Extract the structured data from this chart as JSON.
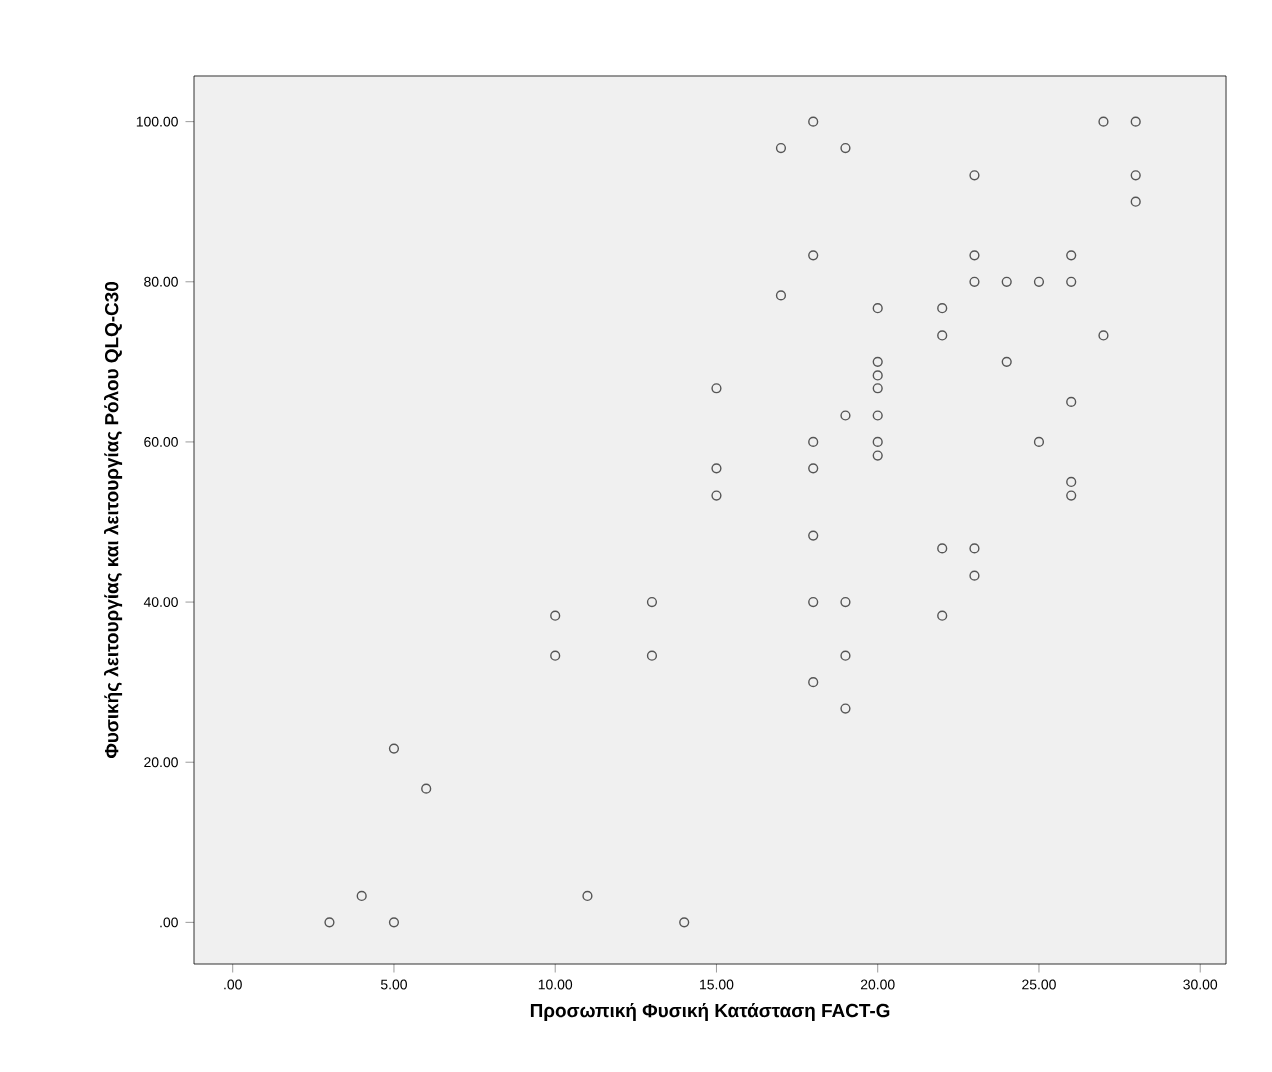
{
  "chart_data": {
    "type": "scatter",
    "xlabel": "Προσωπική Φυσική Κατάσταση FACT-G",
    "ylabel": "Φυσικής λειτουργίας και λειτουργίας Ρόλου QLQ-C30",
    "x": [
      3,
      4,
      5,
      5,
      6,
      10,
      10,
      11,
      13,
      13,
      14,
      15,
      15,
      15,
      17,
      17,
      18,
      18,
      18,
      18,
      18,
      18,
      18,
      19,
      19,
      19,
      19,
      19,
      20,
      20,
      20,
      20,
      20,
      20,
      20,
      22,
      22,
      22,
      22,
      23,
      23,
      23,
      23,
      23,
      24,
      24,
      25,
      25,
      26,
      26,
      26,
      26,
      26,
      27,
      27,
      28,
      28,
      28
    ],
    "values": [
      0,
      3.3,
      0,
      21.7,
      16.7,
      38.3,
      33.3,
      3.3,
      40,
      33.3,
      0,
      66.7,
      56.7,
      53.3,
      96.7,
      78.3,
      100,
      83.3,
      60,
      56.7,
      48.3,
      40,
      30,
      96.7,
      63.3,
      40,
      33.3,
      26.7,
      76.7,
      70,
      68.3,
      66.7,
      63.3,
      60,
      58.3,
      76.7,
      73.3,
      46.7,
      38.3,
      93.3,
      83.3,
      80,
      46.7,
      43.3,
      80,
      70,
      80,
      60,
      83.3,
      80,
      65,
      55,
      53.3,
      100,
      73.3,
      100,
      93.3,
      90
    ],
    "color": "#555555",
    "marker": "circle",
    "xlim": [
      -1.2,
      30.8
    ],
    "ylim": [
      -5.2,
      105.7
    ],
    "xticks": [
      {
        "value": 0,
        "label": ".00"
      },
      {
        "value": 5,
        "label": "5.00"
      },
      {
        "value": 10,
        "label": "10.00"
      },
      {
        "value": 15,
        "label": "15.00"
      },
      {
        "value": 20,
        "label": "20.00"
      },
      {
        "value": 25,
        "label": "25.00"
      },
      {
        "value": 30,
        "label": "30.00"
      }
    ],
    "yticks": [
      {
        "value": 0,
        "label": ".00"
      },
      {
        "value": 20,
        "label": "20.00"
      },
      {
        "value": 40,
        "label": "40.00"
      },
      {
        "value": 60,
        "label": "60.00"
      },
      {
        "value": 80,
        "label": "80.00"
      },
      {
        "value": 100,
        "label": "100.00"
      }
    ]
  }
}
